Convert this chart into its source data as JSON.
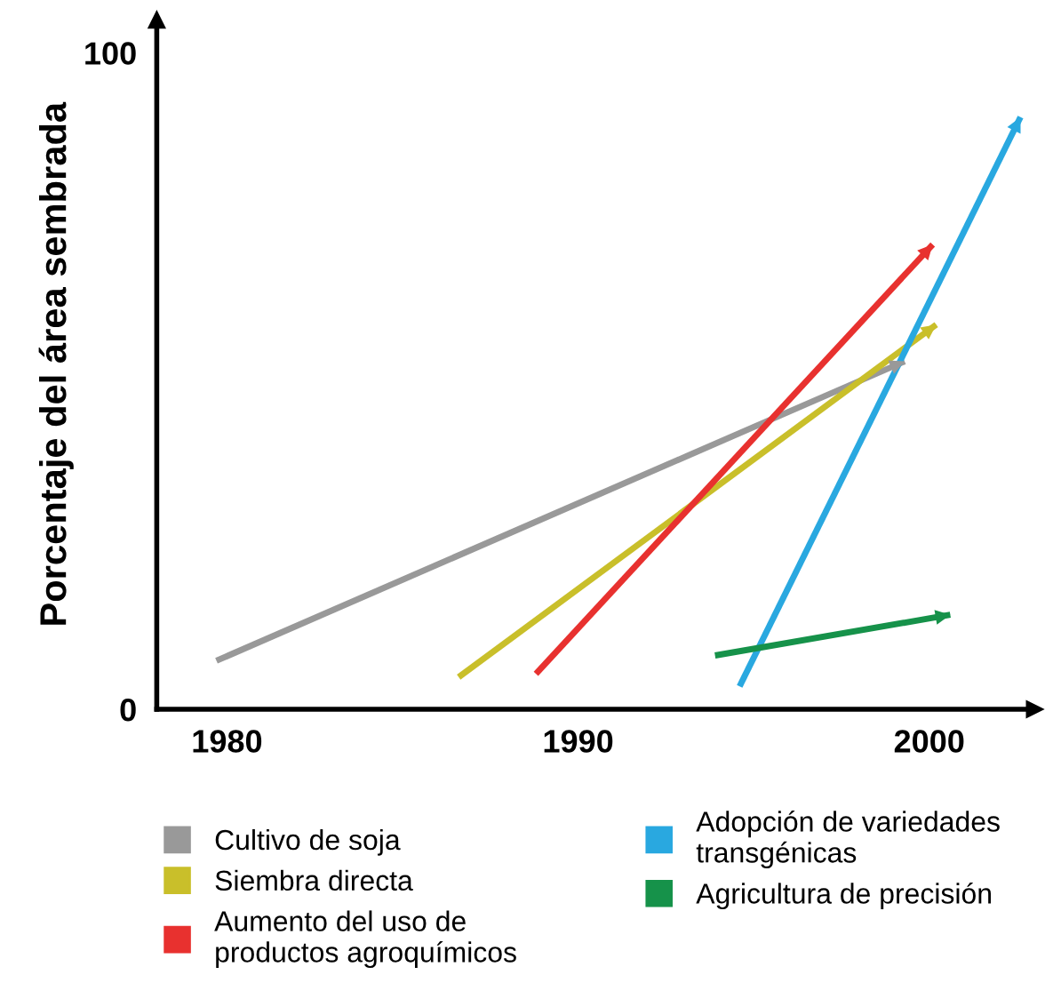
{
  "chart_data": {
    "type": "line",
    "ylabel": "Porcentaje del área sembrada",
    "xlim": [
      1978,
      2003
    ],
    "ylim": [
      0,
      105
    ],
    "xticks": [
      1980,
      1990,
      2000
    ],
    "yticks": [
      0,
      100
    ],
    "grid": false,
    "legend": "bottom",
    "marker": "none",
    "line_style": "solid",
    "series": [
      {
        "name": "Cultivo de soja",
        "color": "#999999",
        "x": [
          1979.7,
          1999.3
        ],
        "values": [
          7.4,
          53
        ]
      },
      {
        "name": "Siembra directa",
        "color": "#c9bf2a",
        "x": [
          1986.6,
          2000.2
        ],
        "values": [
          4.9,
          58.6
        ]
      },
      {
        "name": "Aumento del uso de\nproductos agroquímicos",
        "color": "#e8312f",
        "x": [
          1988.8,
          2000.1
        ],
        "values": [
          5.4,
          70.8
        ]
      },
      {
        "name": "Adopción de variedades\ntransgénicas",
        "color": "#29a8e0",
        "x": [
          1994.6,
          2002.6
        ],
        "values": [
          3.5,
          90.2
        ]
      },
      {
        "name": "Agricultura de precisión",
        "color": "#16924a",
        "x": [
          1993.9,
          2000.6
        ],
        "values": [
          8.2,
          14.4
        ]
      }
    ]
  }
}
